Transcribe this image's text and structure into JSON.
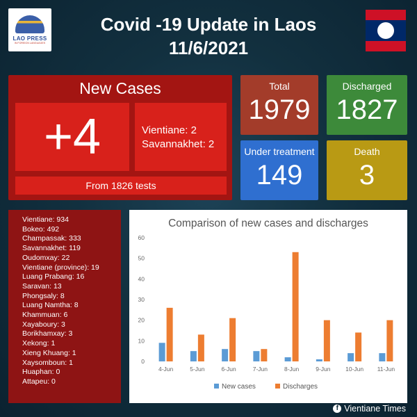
{
  "header": {
    "logo_text": "LAO PRESS",
    "logo_subtext": "IN FOREIGN LANGUAGES",
    "title_line1": "Covid -19 Update in Laos",
    "title_line2": "11/6/2021"
  },
  "new_cases": {
    "heading": "New Cases",
    "count": "+4",
    "provinces": [
      "Vientiane: 2",
      "Savannakhet: 2"
    ],
    "tests": "From 1826 tests"
  },
  "stats": {
    "total": {
      "label": "Total",
      "value": "1979"
    },
    "discharged": {
      "label": "Discharged",
      "value": "1827"
    },
    "under_treatment": {
      "label": "Under treatment",
      "value": "149"
    },
    "death": {
      "label": "Death",
      "value": "3"
    }
  },
  "colors": {
    "new_cases_series": "#5b9bd5",
    "discharges_series": "#ed7d31",
    "total_box": "#a33c2a",
    "discharged_box": "#3d8a3a",
    "under_treatment_box": "#2f6fd0",
    "death_box": "#b99a14"
  },
  "province_list": [
    "Vientiane: 934",
    "Bokeo: 492",
    "Champassak: 333",
    "Savannakhet: 119",
    "Oudomxay: 22",
    "Vientiane (province): 19",
    "Luang Prabang: 16",
    "Saravan: 13",
    "Phongsaly: 8",
    "Luang Namtha: 8",
    "Khammuan: 6",
    "Xayaboury: 3",
    "Borikhamxay: 3",
    "Xekong: 1",
    "Xieng Khuang: 1",
    "Xaysomboun: 1",
    "Huaphan: 0",
    "Attapeu: 0"
  ],
  "chart_data": {
    "type": "bar",
    "title": "Comparison of new cases and discharges",
    "categories": [
      "4-Jun",
      "5-Jun",
      "6-Jun",
      "7-Jun",
      "8-Jun",
      "9-Jun",
      "10-Jun",
      "11-Jun"
    ],
    "series": [
      {
        "name": "New cases",
        "values": [
          9,
          5,
          6,
          5,
          2,
          1,
          4,
          4
        ]
      },
      {
        "name": "Discharges",
        "values": [
          26,
          13,
          21,
          6,
          53,
          20,
          14,
          20
        ]
      }
    ],
    "ylim": [
      0,
      60
    ],
    "yticks": [
      "0",
      "10",
      "20",
      "30",
      "40",
      "50",
      "60"
    ],
    "grid": false,
    "legend": "bottom"
  },
  "footer": {
    "credit": "Vientiane Times",
    "credit_icon": "facebook-icon"
  }
}
